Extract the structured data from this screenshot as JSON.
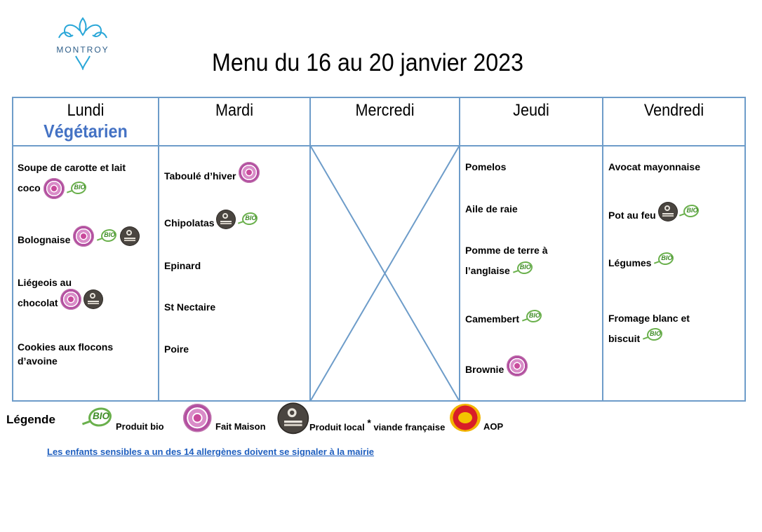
{
  "logo": {
    "text": "MONTROY"
  },
  "title": "Menu du 16 au 20 janvier 2023",
  "days": [
    {
      "name": "Lundi",
      "subtitle": "Végétarien"
    },
    {
      "name": "Mardi"
    },
    {
      "name": "Mercredi"
    },
    {
      "name": "Jeudi"
    },
    {
      "name": "Vendredi"
    }
  ],
  "dishes": {
    "lundi": [
      "Soupe de carotte et lait",
      "coco",
      "Bolognaise",
      "Liégeois au",
      "chocolat",
      "Cookies aux flocons",
      "d’avoine"
    ],
    "mardi": [
      "Taboulé d’hiver",
      "Chipolatas",
      "Epinard",
      "St Nectaire",
      "Poire"
    ],
    "jeudi": [
      "Pomelos",
      "Aile de raie",
      "Pomme de terre à",
      "l’anglaise",
      "Camembert",
      "Brownie"
    ],
    "vendredi": [
      "Avocat mayonnaise",
      "Pot au feu",
      "Légumes",
      "Fromage blanc et",
      "biscuit"
    ]
  },
  "legend": {
    "title": "Légende",
    "bio": "Produit bio",
    "fait_maison": "Fait Maison",
    "local_prefix": "Produit local",
    "asterisk": "*",
    "local_suffix": "viande française",
    "aop": "AOP"
  },
  "notice": "Les enfants sensibles a un des 14 allergènes doivent se signaler à la mairie",
  "colors": {
    "border": "#6d9cc9",
    "vegetarian": "#4472c4",
    "notice": "#1f5fbf"
  },
  "icons": [
    "fait-maison-icon",
    "bio-icon",
    "produits-locaux-icon",
    "aop-icon"
  ]
}
